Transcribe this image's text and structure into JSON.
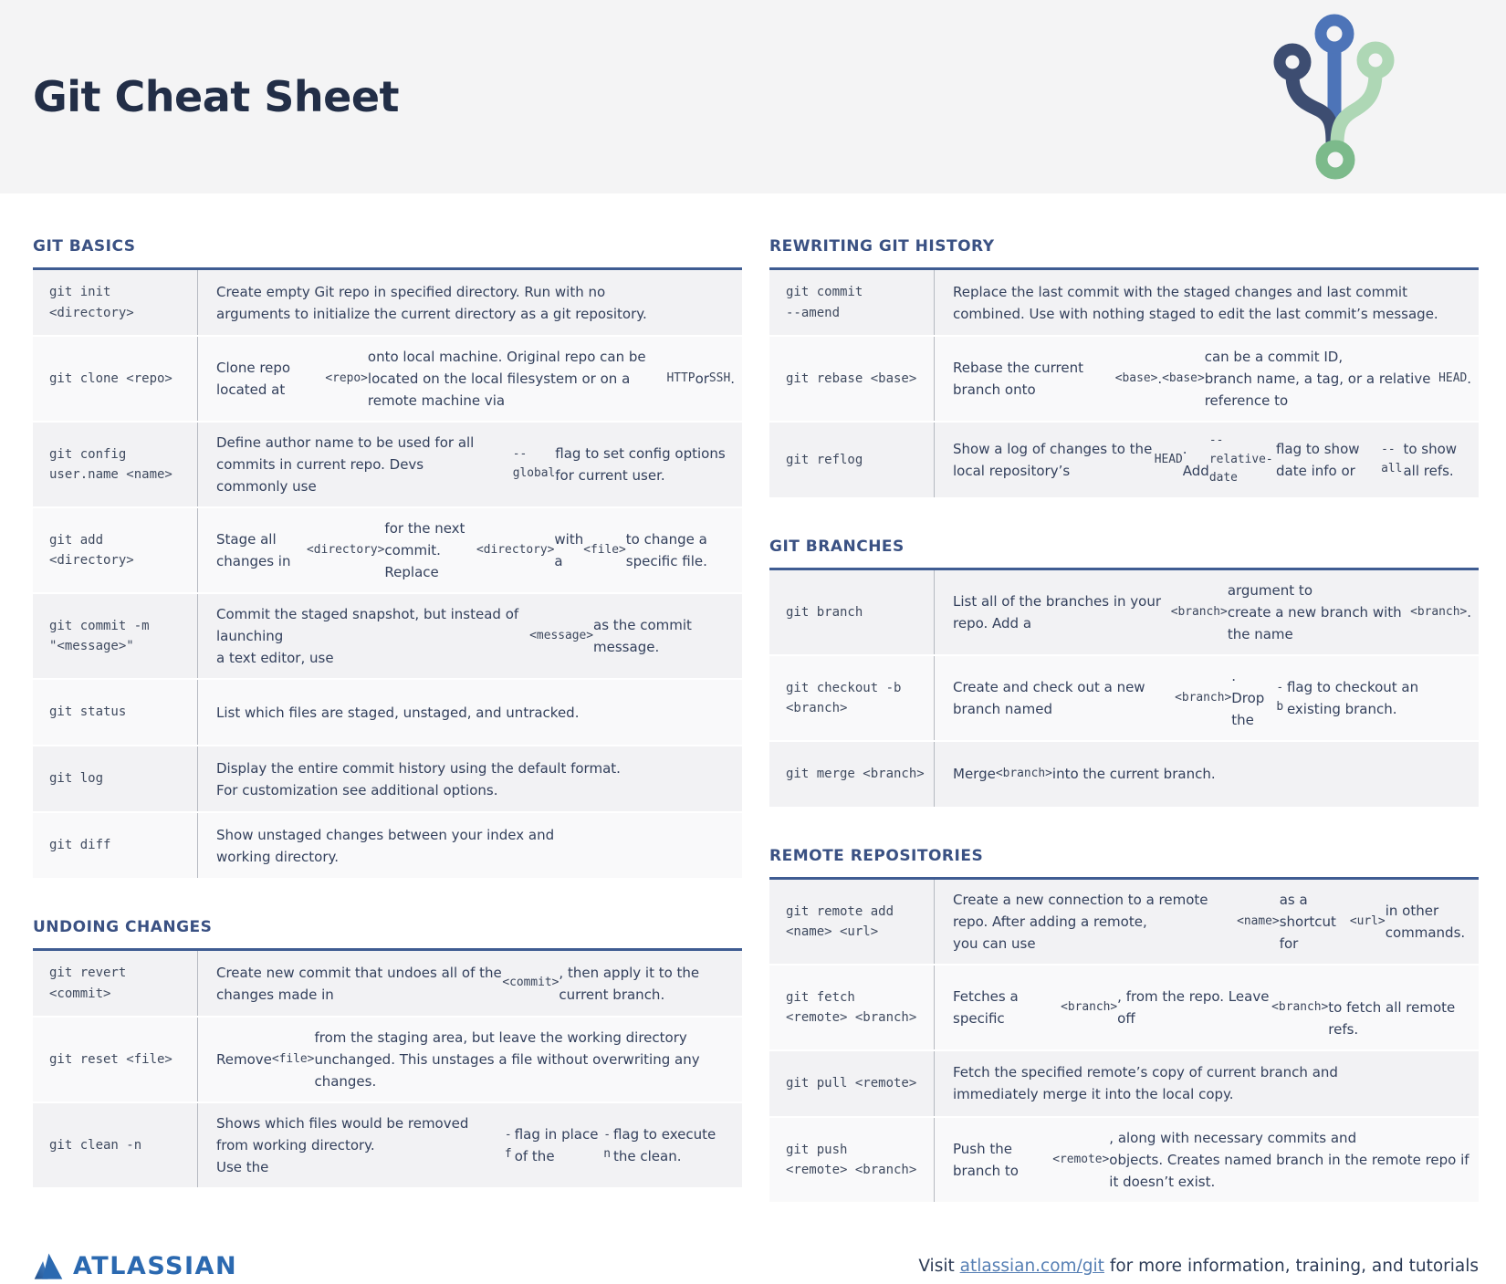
{
  "header": {
    "title": "Git Cheat Sheet"
  },
  "colors": {
    "header_band": "#f4f4f5",
    "section_title": "#3a5183",
    "table_top_border": "#3f5c92",
    "row_dark": "#f2f2f4",
    "row_light": "#f9f9fa",
    "logo_navy": "#3d4d71",
    "logo_blue": "#4d74b8",
    "logo_pale_green": "#aed7b5",
    "logo_green": "#7cba8b",
    "atlassian_blue": "#2b69b0"
  },
  "columns": {
    "left": [
      {
        "title": "GIT BASICS",
        "rows": [
          {
            "cmd": "git init\n<directory>",
            "desc": "Create empty Git repo in specified directory. Run with no\narguments to initialize the current directory as a git repository."
          },
          {
            "cmd": "git clone <repo>",
            "desc": "Clone repo located at `<repo>` onto local machine. Original repo can be\nlocated on the local filesystem or on a remote machine via `HTTP` or `SSH`."
          },
          {
            "cmd": "git config\nuser.name <name>",
            "desc": "Define author name to be used for all commits in current repo. Devs\ncommonly use `--global` flag to set config options for current user."
          },
          {
            "cmd": "git add\n<directory>",
            "desc": "Stage all changes in `<directory>` for the next commit.\nReplace `<directory>` with a `<file>` to change a specific file."
          },
          {
            "cmd": "git commit -m\n\"<message>\"",
            "desc": "Commit the staged snapshot, but instead of launching\na text editor, use `<message>` as the commit message."
          },
          {
            "cmd": "git status",
            "desc": "List which files are staged, unstaged, and untracked."
          },
          {
            "cmd": "git log",
            "desc": "Display the entire commit history using the default format.\nFor customization see additional options."
          },
          {
            "cmd": "git diff",
            "desc": "Show unstaged changes between your index and\nworking directory."
          }
        ]
      },
      {
        "title": "UNDOING CHANGES",
        "rows": [
          {
            "cmd": "git revert\n<commit>",
            "desc": "Create new commit that undoes all of the changes made in\n`<commit>`, then apply it to the current branch."
          },
          {
            "cmd": "git reset <file>",
            "desc": "Remove `<file>` from the staging area, but leave the working directory\nunchanged. This unstages a file without overwriting any changes."
          },
          {
            "cmd": "git clean -n",
            "desc": "Shows which files would be removed from working directory.\nUse the `-f` flag in place of the `-n` flag to execute the clean."
          }
        ]
      }
    ],
    "right": [
      {
        "title": "REWRITING GIT HISTORY",
        "rows": [
          {
            "cmd": "git commit\n--amend",
            "desc": "Replace the last commit with the staged changes and last commit\ncombined. Use with nothing staged to edit the last commit’s message."
          },
          {
            "cmd": "git rebase <base>",
            "desc": "Rebase the current branch onto `<base>`. `<base>` can be a commit ID,\nbranch name, a tag, or a relative reference to `HEAD`."
          },
          {
            "cmd": "git reflog",
            "desc": "Show a log of changes to the local repository’s `HEAD`.\nAdd `--relative-date` flag to show date info or `--all` to show all refs."
          }
        ]
      },
      {
        "title": "GIT BRANCHES",
        "rows": [
          {
            "cmd": "git branch",
            "desc": "List all of the branches in your repo. Add a `<branch>` argument to\ncreate a new branch with the name `<branch>`."
          },
          {
            "cmd": "git checkout -b\n<branch>",
            "desc": "Create and check out a new branch named `<branch>`.\nDrop the `-b` flag to checkout an existing branch."
          },
          {
            "cmd": "git merge <branch>",
            "desc": "Merge `<branch>` into the current branch."
          }
        ]
      },
      {
        "title": "REMOTE REPOSITORIES",
        "rows": [
          {
            "cmd": "git remote add\n<name> <url>",
            "desc": "Create a new connection to a remote repo. After adding a remote,\nyou can use `<name>` as a shortcut for `<url>` in other commands."
          },
          {
            "cmd": "git fetch\n<remote> <branch>",
            "desc": "Fetches a specific `<branch>`, from the repo. Leave off `<branch>`\nto fetch all remote refs."
          },
          {
            "cmd": "git pull <remote>",
            "desc": "Fetch the specified remote’s copy of current branch and\nimmediately merge it into the local copy."
          },
          {
            "cmd": "git push\n<remote> <branch>",
            "desc": "Push the branch to `<remote>`, along with necessary commits and\nobjects. Creates named branch in the remote repo if it doesn’t exist."
          }
        ]
      }
    ]
  },
  "footer": {
    "brand": "ATLASSIAN",
    "note_prefix": "Visit ",
    "link": "atlassian.com/git",
    "note_suffix": " for more information, training, and tutorials"
  }
}
